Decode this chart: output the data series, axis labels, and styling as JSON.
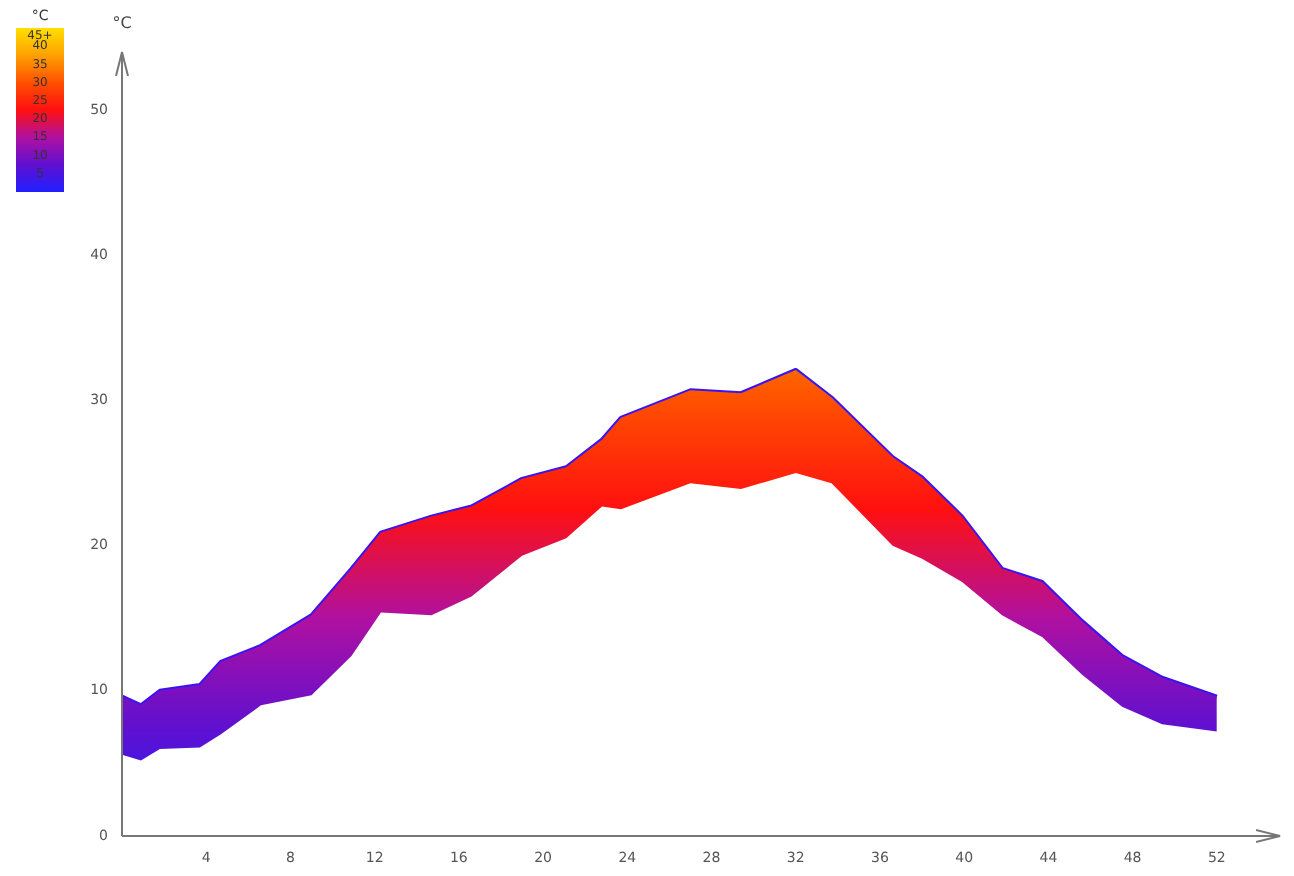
{
  "chart_data": {
    "type": "line",
    "ylabel": "°C",
    "clabel": "°C",
    "x": [
      0,
      0.9,
      1.8,
      3.7,
      4.7,
      6.6,
      9,
      10.9,
      12.3,
      14.7,
      16.6,
      19,
      21.1,
      22.8,
      23.7,
      27,
      29.4,
      32,
      33.7,
      36.6,
      38,
      39.9,
      41.8,
      43.7,
      45.6,
      47.5,
      49.4,
      52
    ],
    "series": [
      {
        "color": "#3a14f0",
        "values": [
          9.6,
          9,
          10,
          10.4,
          12,
          13.1,
          15.2,
          18.4,
          20.9,
          22,
          22.7,
          24.6,
          25.4,
          27.3,
          28.8,
          30.7,
          30.5,
          32.1,
          30.2,
          26.1,
          24.7,
          22,
          18.4,
          17.5,
          14.8,
          12.4,
          10.9,
          9.6
        ],
        "upper": [
          9.6,
          9,
          10,
          10.4,
          12,
          13.1,
          15.2,
          18.4,
          20.9,
          22,
          22.7,
          24.6,
          25.4,
          27.3,
          28.8,
          30.7,
          30.5,
          32.1,
          30.2,
          26.1,
          24.7,
          22,
          18.4,
          17.5,
          14.8,
          12.4,
          10.9,
          9.6
        ],
        "lower": [
          5.6,
          5.2,
          6,
          6.1,
          7,
          9,
          9.7,
          12.4,
          15.4,
          15.2,
          16.5,
          19.3,
          20.5,
          22.7,
          22.5,
          24.3,
          23.9,
          25,
          24.3,
          20,
          19.1,
          17.5,
          15.2,
          13.7,
          11.1,
          8.9,
          7.7,
          7.2
        ]
      }
    ],
    "xlim": [
      0,
      55
    ],
    "ylim": [
      0,
      54
    ],
    "xticks": [
      4,
      8,
      12,
      16,
      20,
      24,
      28,
      32,
      36,
      40,
      44,
      48,
      52
    ],
    "yticks": [
      0,
      10,
      20,
      30,
      40,
      50
    ],
    "clim": [
      0,
      45
    ],
    "cticks": [
      {
        "value": 45,
        "label": "45+"
      },
      40,
      35,
      30,
      25,
      20,
      15,
      10,
      5
    ],
    "grid": false,
    "legend": false
  }
}
